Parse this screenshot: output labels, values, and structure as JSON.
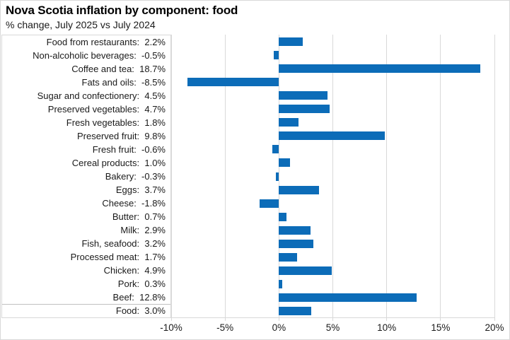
{
  "chart_data": {
    "type": "bar",
    "orientation": "horizontal",
    "title": "Nova Scotia inflation by component: food",
    "subtitle": "% change, July 2025 vs July 2024",
    "xlim": [
      -10,
      20
    ],
    "x_tick_values": [
      -10,
      -5,
      0,
      5,
      10,
      15,
      20
    ],
    "x_tick_labels": [
      "-10%",
      "-5%",
      "0%",
      "5%",
      "10%",
      "15%",
      "20%"
    ],
    "grid": true,
    "legend": false,
    "bar_color": "#0c6cb8",
    "gridline_color": "#d9d9d9",
    "separator_color": "#bfbfbf",
    "separator_above_index": 20,
    "rows": [
      {
        "category": "Food from restaurants",
        "value": 2.2,
        "display": "Food from restaurants:  2.2%"
      },
      {
        "category": "Non-alcoholic beverages",
        "value": -0.5,
        "display": "Non-alcoholic beverages:  -0.5%"
      },
      {
        "category": "Coffee and tea",
        "value": 18.7,
        "display": "Coffee and tea:  18.7%"
      },
      {
        "category": "Fats and oils",
        "value": -8.5,
        "display": "Fats and oils:  -8.5%"
      },
      {
        "category": "Sugar and confectionery",
        "value": 4.5,
        "display": "Sugar and confectionery:  4.5%"
      },
      {
        "category": "Preserved vegetables",
        "value": 4.7,
        "display": "Preserved vegetables:  4.7%"
      },
      {
        "category": "Fresh vegetables",
        "value": 1.8,
        "display": "Fresh vegetables:  1.8%"
      },
      {
        "category": "Preserved fruit",
        "value": 9.8,
        "display": "Preserved fruit:  9.8%"
      },
      {
        "category": "Fresh fruit",
        "value": -0.6,
        "display": "Fresh fruit:  -0.6%"
      },
      {
        "category": "Cereal products",
        "value": 1.0,
        "display": "Cereal products:  1.0%"
      },
      {
        "category": "Bakery",
        "value": -0.3,
        "display": "Bakery:  -0.3%"
      },
      {
        "category": "Eggs",
        "value": 3.7,
        "display": "Eggs:  3.7%"
      },
      {
        "category": "Cheese",
        "value": -1.8,
        "display": "Cheese:  -1.8%"
      },
      {
        "category": "Butter",
        "value": 0.7,
        "display": "Butter:  0.7%"
      },
      {
        "category": "Milk",
        "value": 2.9,
        "display": "Milk:  2.9%"
      },
      {
        "category": "Fish, seafood",
        "value": 3.2,
        "display": "Fish, seafood:  3.2%"
      },
      {
        "category": "Processed meat",
        "value": 1.7,
        "display": "Processed meat:  1.7%"
      },
      {
        "category": "Chicken",
        "value": 4.9,
        "display": "Chicken:  4.9%"
      },
      {
        "category": "Pork",
        "value": 0.3,
        "display": "Pork:  0.3%"
      },
      {
        "category": "Beef",
        "value": 12.8,
        "display": "Beef:  12.8%"
      },
      {
        "category": "Food",
        "value": 3.0,
        "display": "Food:  3.0%"
      }
    ]
  }
}
